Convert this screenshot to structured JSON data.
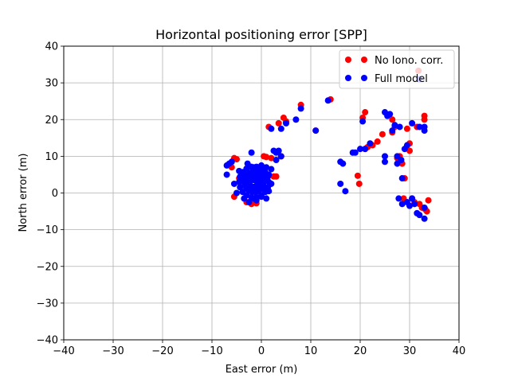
{
  "chart_data": {
    "type": "scatter",
    "title": "Horizontal positioning error [SPP]",
    "xlabel": "East error (m)",
    "ylabel": "North error (m)",
    "xlim": [
      -40,
      40
    ],
    "ylim": [
      -40,
      40
    ],
    "xticks": [
      -40,
      -30,
      -20,
      -10,
      0,
      10,
      20,
      30,
      40
    ],
    "yticks": [
      -40,
      -30,
      -20,
      -10,
      0,
      10,
      20,
      30,
      40
    ],
    "xtick_labels": [
      "−40",
      "−30",
      "−20",
      "−10",
      "0",
      "10",
      "20",
      "30",
      "40"
    ],
    "ytick_labels": [
      "−40",
      "−30",
      "−20",
      "−10",
      "0",
      "10",
      "20",
      "30",
      "40"
    ],
    "grid": true,
    "legend_position": "top-right",
    "series": [
      {
        "name": "No Iono. corr.",
        "color": "#ff0000",
        "points": [
          [
            -5.5,
            9.5
          ],
          [
            -5.0,
            9.2
          ],
          [
            -6.0,
            7.0
          ],
          [
            -5.5,
            -1.0
          ],
          [
            -4.5,
            4.0
          ],
          [
            -4.0,
            3.2
          ],
          [
            -3.0,
            -2.5
          ],
          [
            -2.0,
            -3.0
          ],
          [
            -1.0,
            -2.8
          ],
          [
            0.5,
            10.0
          ],
          [
            1.0,
            9.8
          ],
          [
            1.5,
            18.0
          ],
          [
            2.0,
            9.5
          ],
          [
            2.5,
            4.5
          ],
          [
            3.0,
            4.5
          ],
          [
            3.5,
            19.0
          ],
          [
            4.0,
            10.0
          ],
          [
            4.5,
            20.5
          ],
          [
            5.0,
            19.5
          ],
          [
            8.0,
            24.0
          ],
          [
            11.0,
            17.0
          ],
          [
            14.0,
            25.5
          ],
          [
            19.5,
            4.7
          ],
          [
            19.8,
            2.5
          ],
          [
            20.5,
            20.5
          ],
          [
            21.0,
            22.0
          ],
          [
            21.0,
            12.0
          ],
          [
            21.5,
            12.5
          ],
          [
            22.5,
            13.0
          ],
          [
            23.5,
            14.0
          ],
          [
            24.5,
            16.0
          ],
          [
            26.5,
            20.0
          ],
          [
            26.5,
            16.5
          ],
          [
            27.0,
            18.0
          ],
          [
            27.5,
            9.5
          ],
          [
            28.0,
            10.0
          ],
          [
            28.5,
            8.0
          ],
          [
            28.8,
            -1.5
          ],
          [
            29.0,
            4.0
          ],
          [
            29.5,
            17.5
          ],
          [
            30.0,
            13.5
          ],
          [
            30.0,
            11.5
          ],
          [
            30.5,
            -1.5
          ],
          [
            31.0,
            -2.5
          ],
          [
            31.5,
            18.0
          ],
          [
            31.8,
            33.3
          ],
          [
            32.0,
            -3.0
          ],
          [
            32.5,
            -4.0
          ],
          [
            33.0,
            21.0
          ],
          [
            33.0,
            20.0
          ],
          [
            33.2,
            -4.5
          ],
          [
            33.5,
            -5.0
          ],
          [
            33.8,
            -2.0
          ]
        ]
      },
      {
        "name": "Full model",
        "color": "#0000ff",
        "points": [
          [
            -7.0,
            7.5
          ],
          [
            -7.0,
            5.0
          ],
          [
            -6.5,
            8.0
          ],
          [
            -6.0,
            8.5
          ],
          [
            -5.5,
            2.5
          ],
          [
            -5.0,
            0.0
          ],
          [
            -4.5,
            6.0
          ],
          [
            -4.0,
            4.5
          ],
          [
            -3.5,
            3.5
          ],
          [
            -3.5,
            -1.5
          ],
          [
            -3.0,
            6.5
          ],
          [
            -3.0,
            1.5
          ],
          [
            -2.8,
            8.0
          ],
          [
            -2.5,
            2.5
          ],
          [
            -2.5,
            -2.5
          ],
          [
            -2.0,
            11.0
          ],
          [
            -2.0,
            5.5
          ],
          [
            -2.0,
            0.5
          ],
          [
            -1.5,
            7.0
          ],
          [
            -1.5,
            3.5
          ],
          [
            -1.5,
            -1.5
          ],
          [
            -1.0,
            6.0
          ],
          [
            -1.0,
            2.0
          ],
          [
            -1.0,
            -2.0
          ],
          [
            -0.5,
            4.5
          ],
          [
            -0.5,
            0.5
          ],
          [
            0.0,
            7.5
          ],
          [
            0.0,
            3.0
          ],
          [
            0.0,
            -1.0
          ],
          [
            0.5,
            5.5
          ],
          [
            0.5,
            1.5
          ],
          [
            1.0,
            7.0
          ],
          [
            1.0,
            3.5
          ],
          [
            1.0,
            -1.5
          ],
          [
            1.5,
            5.0
          ],
          [
            1.5,
            0.5
          ],
          [
            2.0,
            6.5
          ],
          [
            2.0,
            2.5
          ],
          [
            2.0,
            17.5
          ],
          [
            2.5,
            11.5
          ],
          [
            3.0,
            11.0
          ],
          [
            3.0,
            9.0
          ],
          [
            3.5,
            11.5
          ],
          [
            4.0,
            17.5
          ],
          [
            4.0,
            10.0
          ],
          [
            5.0,
            19.0
          ],
          [
            7.0,
            20.0
          ],
          [
            8.0,
            23.0
          ],
          [
            11.0,
            17.0
          ],
          [
            13.5,
            25.2
          ],
          [
            16.0,
            8.5
          ],
          [
            16.5,
            8.0
          ],
          [
            16.0,
            2.5
          ],
          [
            17.0,
            0.5
          ],
          [
            18.5,
            11.0
          ],
          [
            19.0,
            11.0
          ],
          [
            20.0,
            12.0
          ],
          [
            20.5,
            19.5
          ],
          [
            21.0,
            12.0
          ],
          [
            22.0,
            13.5
          ],
          [
            25.0,
            22.0
          ],
          [
            25.0,
            10.0
          ],
          [
            25.0,
            8.5
          ],
          [
            25.5,
            21.0
          ],
          [
            26.0,
            21.5
          ],
          [
            26.5,
            17.0
          ],
          [
            27.0,
            18.5
          ],
          [
            27.5,
            10.0
          ],
          [
            27.5,
            8.0
          ],
          [
            27.8,
            -1.5
          ],
          [
            28.0,
            18.0
          ],
          [
            28.3,
            9.0
          ],
          [
            28.5,
            4.0
          ],
          [
            28.5,
            -3.0
          ],
          [
            29.0,
            12.0
          ],
          [
            29.5,
            13.0
          ],
          [
            29.5,
            -2.5
          ],
          [
            30.0,
            -3.5
          ],
          [
            30.5,
            -1.5
          ],
          [
            30.5,
            19.0
          ],
          [
            31.0,
            -3.0
          ],
          [
            31.5,
            -5.5
          ],
          [
            32.0,
            -6.0
          ],
          [
            32.0,
            18.0
          ],
          [
            32.0,
            31.0
          ],
          [
            33.0,
            18.0
          ],
          [
            33.0,
            17.0
          ],
          [
            33.0,
            -4.0
          ],
          [
            33.0,
            -7.0
          ]
        ]
      }
    ]
  }
}
